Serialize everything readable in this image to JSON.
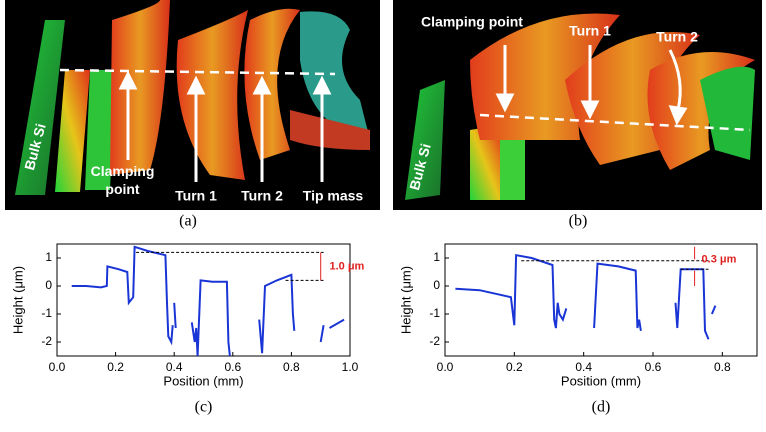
{
  "images": [
    {
      "caption": "(a)",
      "labels": [
        "Bulk Si",
        "Clamping point",
        "Turn 1",
        "Turn 2",
        "Tip mass"
      ]
    },
    {
      "caption": "(b)",
      "labels": [
        "Bulk Si",
        "Clamping point",
        "Turn 1",
        "Turn 2"
      ]
    }
  ],
  "chart_data": [
    {
      "type": "line",
      "caption": "(c)",
      "x_label": "Position (mm)",
      "y_label": "Height (μm)",
      "annotation": "1.0 μm",
      "xlim": [
        0,
        1.0
      ],
      "xticks": [
        {
          "value": 0,
          "label": "0.0"
        },
        0.2,
        0.4,
        0.6,
        0.8,
        {
          "value": 1.0,
          "label": "1.0"
        }
      ],
      "ylim": [
        -2.5,
        1.5
      ],
      "yticks": [
        -2,
        -1,
        0,
        1
      ],
      "series": [
        {
          "color": "#1a35d6",
          "x": [
            0.05,
            0.1,
            0.15,
            0.17,
            0.172,
            0.21,
            0.24,
            0.245,
            0.26,
            0.265,
            0.31,
            0.37,
            0.375,
            0.38,
            0.39,
            0.395,
            null,
            0.4,
            0.405,
            null,
            0.46,
            0.47,
            0.475,
            0.48,
            0.49,
            0.53,
            0.58,
            0.585,
            0.59,
            null,
            0.69,
            0.7,
            0.71,
            0.75,
            0.8,
            0.805,
            0.81,
            null,
            0.9,
            0.91,
            null,
            0.93,
            0.98
          ],
          "values": [
            0.0,
            0.0,
            -0.05,
            0.0,
            0.7,
            0.6,
            0.5,
            -0.6,
            -0.4,
            1.4,
            1.25,
            1.1,
            -0.5,
            -1.8,
            -2.0,
            -1.4,
            null,
            -0.6,
            -1.5,
            null,
            -1.3,
            -2.0,
            -1.5,
            -2.5,
            0.2,
            0.15,
            0.15,
            -2.0,
            -2.5,
            null,
            -1.2,
            -2.4,
            0.0,
            0.2,
            0.4,
            -1.0,
            -1.6,
            null,
            -2.0,
            -1.4,
            null,
            -1.5,
            -1.2
          ]
        }
      ]
    },
    {
      "type": "line",
      "caption": "(d)",
      "x_label": "Position (mm)",
      "y_label": "Height (μm)",
      "annotation": "0.3 μm",
      "xlim": [
        0,
        0.9
      ],
      "xticks": [
        {
          "value": 0,
          "label": "0.0"
        },
        0.2,
        0.4,
        0.6,
        0.8
      ],
      "ylim": [
        -2.5,
        1.5
      ],
      "yticks": [
        -2,
        -1,
        0,
        1
      ],
      "series": [
        {
          "color": "#1a35d6",
          "x": [
            0.03,
            0.1,
            0.19,
            0.2,
            0.205,
            0.25,
            0.31,
            0.315,
            0.32,
            0.325,
            0.33,
            0.34,
            0.35,
            null,
            0.43,
            0.44,
            0.5,
            0.55,
            0.555,
            0.56,
            0.565,
            null,
            0.665,
            0.67,
            0.68,
            0.72,
            0.745,
            0.75,
            0.76,
            null,
            0.77,
            0.78
          ],
          "values": [
            -0.1,
            -0.15,
            -0.4,
            -1.4,
            1.1,
            1.0,
            0.75,
            -1.2,
            -1.5,
            -0.6,
            -1.0,
            -1.2,
            -0.8,
            null,
            -1.5,
            0.8,
            0.7,
            0.55,
            -1.5,
            -1.2,
            -1.6,
            null,
            -0.6,
            -1.5,
            0.6,
            0.6,
            0.6,
            -1.6,
            -1.9,
            null,
            -1.0,
            -0.7
          ]
        }
      ]
    }
  ]
}
